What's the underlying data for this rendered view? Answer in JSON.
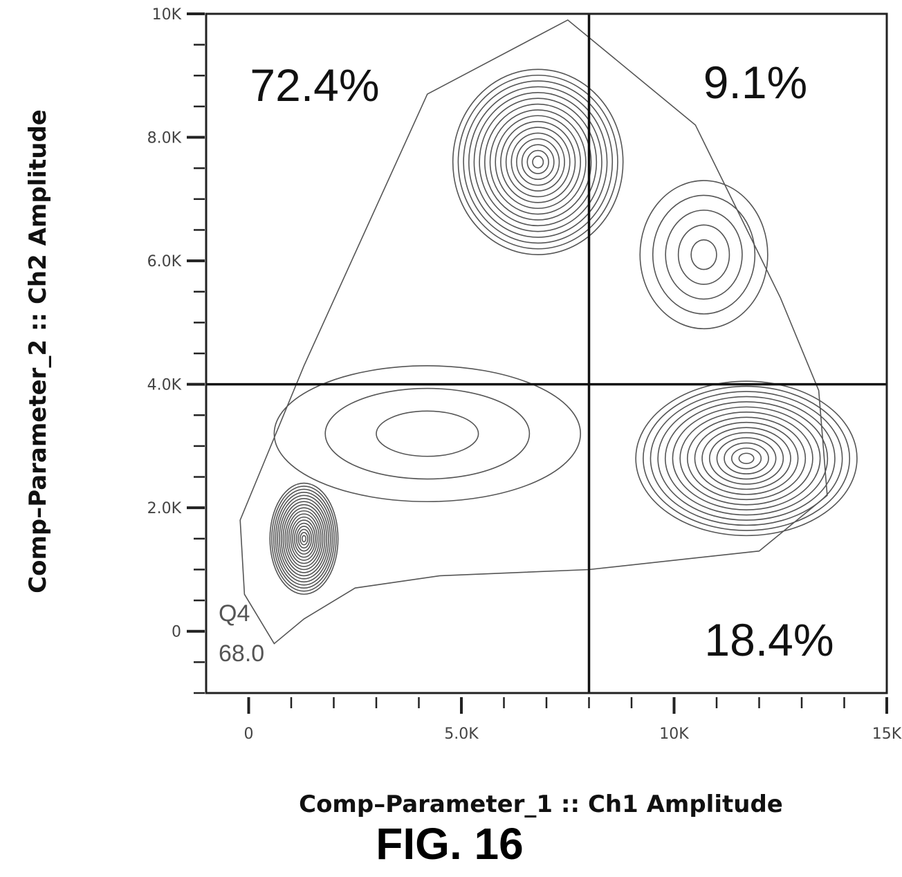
{
  "figure": {
    "caption": "FIG. 16"
  },
  "chart_data": {
    "type": "contour",
    "xlabel": "Comp–Parameter_1 :: Ch1 Amplitude",
    "ylabel": "Comp–Parameter_2 :: Ch2 Amplitude",
    "xlim": [
      -1000,
      15000
    ],
    "ylim": [
      -1000,
      10000
    ],
    "x_ticks": [
      {
        "value": 0,
        "label": "0"
      },
      {
        "value": 5000,
        "label": "5.0K"
      },
      {
        "value": 10000,
        "label": "10K"
      },
      {
        "value": 15000,
        "label": "15K"
      }
    ],
    "y_ticks": [
      {
        "value": 0,
        "label": "0"
      },
      {
        "value": 2000,
        "label": "2.0K"
      },
      {
        "value": 4000,
        "label": "4.0K"
      },
      {
        "value": 6000,
        "label": "6.0K"
      },
      {
        "value": 8000,
        "label": "8.0K"
      },
      {
        "value": 10000,
        "label": "10K"
      }
    ],
    "gates": {
      "x": 8000,
      "y": 4000
    },
    "quadrants": [
      {
        "name": "upper-left",
        "label": "72.4%"
      },
      {
        "name": "upper-right",
        "label": "9.1%"
      },
      {
        "name": "lower-right",
        "label": "18.4%"
      },
      {
        "name": "lower-left",
        "label": "Q4",
        "value": "68.0"
      }
    ],
    "populations": [
      {
        "center": [
          1300,
          1500
        ],
        "radius": [
          800,
          900
        ],
        "levels": 18
      },
      {
        "center": [
          6800,
          7600
        ],
        "radius": [
          2000,
          1500
        ],
        "levels": 16
      },
      {
        "center": [
          11700,
          2800
        ],
        "radius": [
          2600,
          1250
        ],
        "levels": 15
      },
      {
        "center": [
          10700,
          6100
        ],
        "radius": [
          1500,
          1200
        ],
        "levels": 5
      },
      {
        "center": [
          4200,
          3200
        ],
        "radius": [
          3600,
          1100
        ],
        "levels": 3
      }
    ],
    "grid": false
  }
}
